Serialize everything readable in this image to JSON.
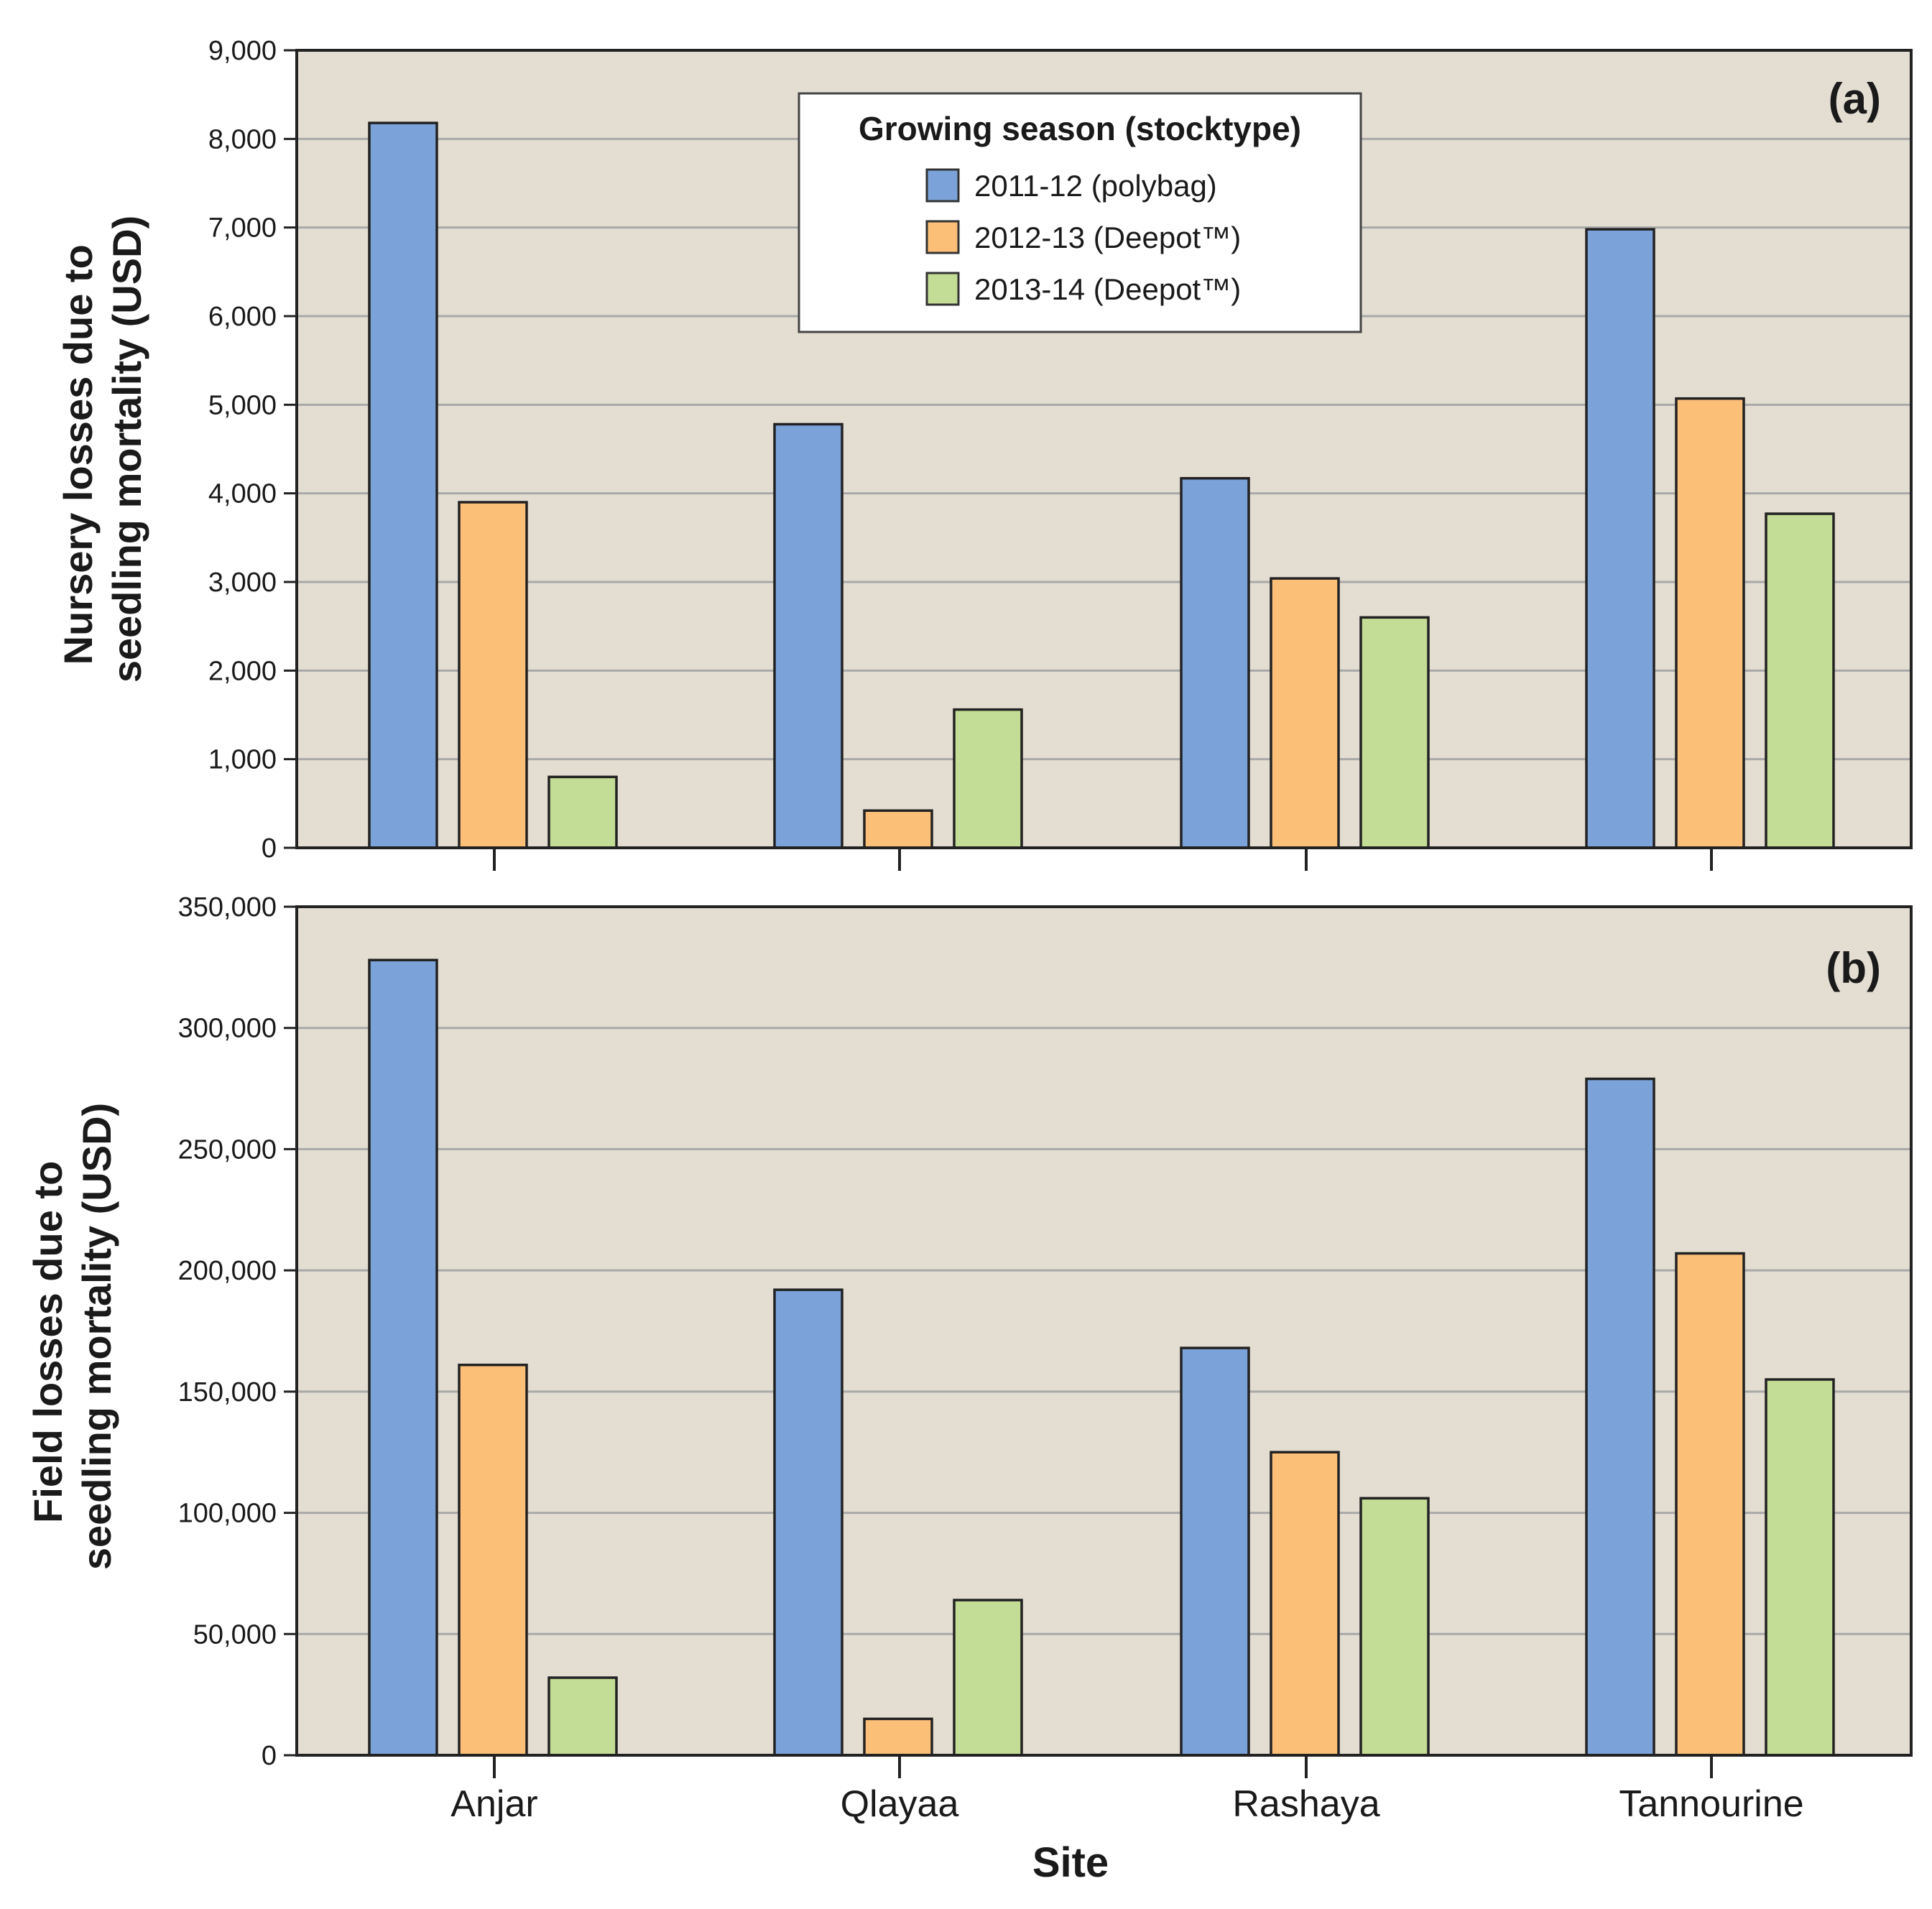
{
  "chart_data": {
    "type": "bar",
    "xlabel": "Site",
    "categories": [
      "Anjar",
      "Qlayaa",
      "Rashaya",
      "Tannourine"
    ],
    "legend": {
      "title": "Growing season (stocktype)",
      "placement": "top-center",
      "entries": [
        "2011-12 (polybag)",
        "2012-13 (Deepot™)",
        "2013-14 (Deepot™)"
      ]
    },
    "colors": [
      "#7ba3d9",
      "#fcbf78",
      "#c3dc96"
    ],
    "panels": [
      {
        "label": "(a)",
        "ylabel_line1": "Nursery losses due to",
        "ylabel_line2": "seedling mortality (USD)",
        "ylim": [
          0,
          9000
        ],
        "yticks": [
          0,
          1000,
          2000,
          3000,
          4000,
          5000,
          6000,
          7000,
          8000,
          9000
        ],
        "ytick_labels": [
          "0",
          "1,000",
          "2,000",
          "3,000",
          "4,000",
          "5,000",
          "6,000",
          "7,000",
          "8,000",
          "9,000"
        ],
        "grid": true,
        "series": [
          {
            "name": "2011-12 (polybag)",
            "values": [
              8180,
              4780,
              4170,
              6980
            ]
          },
          {
            "name": "2012-13 (Deepot™)",
            "values": [
              3900,
              420,
              3040,
              5070
            ]
          },
          {
            "name": "2013-14 (Deepot™)",
            "values": [
              800,
              1560,
              2600,
              3770
            ]
          }
        ]
      },
      {
        "label": "(b)",
        "ylabel_line1": "Field losses due to",
        "ylabel_line2": "seedling mortality (USD)",
        "ylim": [
          0,
          350000
        ],
        "yticks": [
          0,
          50000,
          100000,
          150000,
          200000,
          250000,
          300000,
          350000
        ],
        "ytick_labels": [
          "0",
          "50,000",
          "100,000",
          "150,000",
          "200,000",
          "250,000",
          "300,000",
          "350,000"
        ],
        "grid": true,
        "series": [
          {
            "name": "2011-12 (polybag)",
            "values": [
              328000,
              192000,
              168000,
              279000
            ]
          },
          {
            "name": "2012-13 (Deepot™)",
            "values": [
              161000,
              15000,
              125000,
              207000
            ]
          },
          {
            "name": "2013-14 (Deepot™)",
            "values": [
              32000,
              64000,
              106000,
              155000
            ]
          }
        ]
      }
    ]
  }
}
